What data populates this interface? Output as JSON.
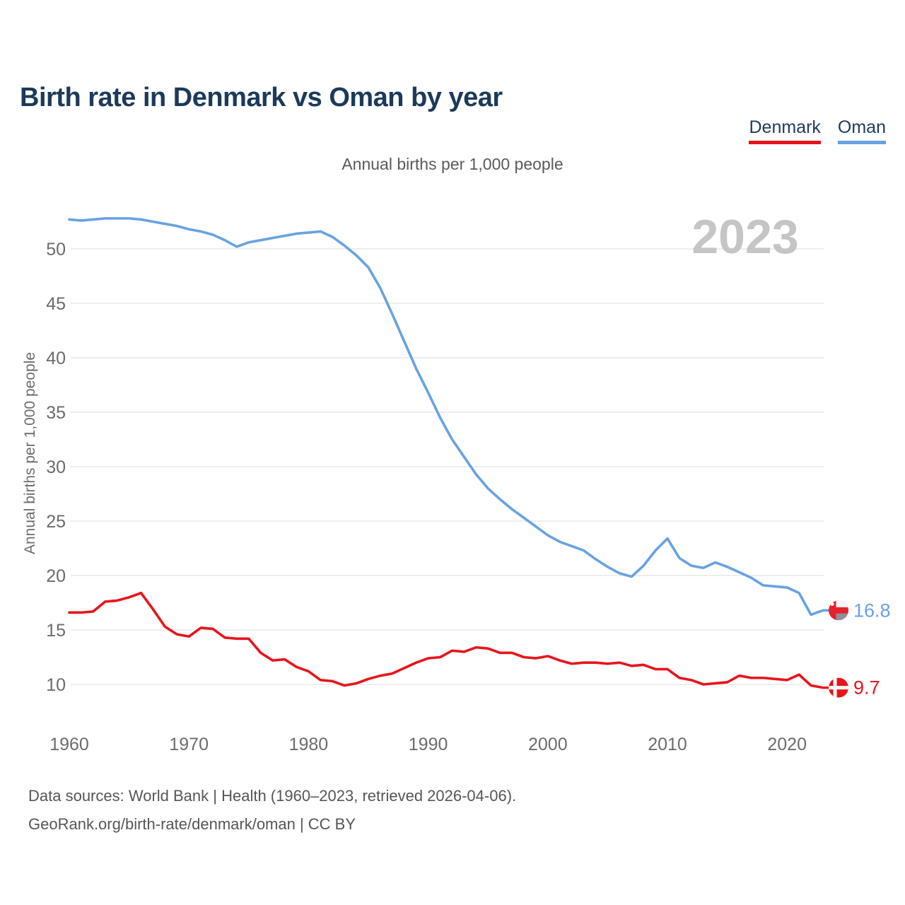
{
  "header": {
    "title": "Birth rate in Denmark vs Oman by year"
  },
  "legend": {
    "denmark": "Denmark",
    "oman": "Oman"
  },
  "footer": {
    "line1": "Data sources: World Bank | Health (1960–2023, retrieved 2026-04-06).",
    "line2": "GeoRank.org/birth-rate/denmark/oman | CC BY"
  },
  "chart_data": {
    "type": "line",
    "subtitle": "Annual births per 1,000 people",
    "ylabel": "Annual births per 1,000 people",
    "xlabel": "",
    "watermark": "2023",
    "grid_color": "#e9e9e9",
    "tick_color": "#6c6c6c",
    "ylim": [
      8.5,
      54
    ],
    "xlim": [
      1960,
      2023
    ],
    "yticks": [
      10,
      15,
      20,
      25,
      30,
      35,
      40,
      45,
      50
    ],
    "xticks": [
      1960,
      1970,
      1980,
      1990,
      2000,
      2010,
      2020
    ],
    "legend_position": "top-right",
    "grid": "horizontal-only",
    "x": [
      1960,
      1961,
      1962,
      1963,
      1964,
      1965,
      1966,
      1967,
      1968,
      1969,
      1970,
      1971,
      1972,
      1973,
      1974,
      1975,
      1976,
      1977,
      1978,
      1979,
      1980,
      1981,
      1982,
      1983,
      1984,
      1985,
      1986,
      1987,
      1988,
      1989,
      1990,
      1991,
      1992,
      1993,
      1994,
      1995,
      1996,
      1997,
      1998,
      1999,
      2000,
      2001,
      2002,
      2003,
      2004,
      2005,
      2006,
      2007,
      2008,
      2009,
      2010,
      2011,
      2012,
      2013,
      2014,
      2015,
      2016,
      2017,
      2018,
      2019,
      2020,
      2021,
      2022,
      2023
    ],
    "series": [
      {
        "name": "Denmark",
        "color": "#e8141c",
        "end_label": "9.7",
        "flag": "denmark",
        "values": [
          16.6,
          16.6,
          16.7,
          17.6,
          17.7,
          18.0,
          18.4,
          16.9,
          15.3,
          14.6,
          14.4,
          15.2,
          15.1,
          14.3,
          14.2,
          14.2,
          12.9,
          12.2,
          12.3,
          11.6,
          11.2,
          10.4,
          10.3,
          9.9,
          10.1,
          10.5,
          10.8,
          11.0,
          11.5,
          12.0,
          12.4,
          12.5,
          13.1,
          13.0,
          13.4,
          13.3,
          12.9,
          12.9,
          12.5,
          12.4,
          12.6,
          12.2,
          11.9,
          12.0,
          12.0,
          11.9,
          12.0,
          11.7,
          11.8,
          11.4,
          11.4,
          10.6,
          10.4,
          10.0,
          10.1,
          10.2,
          10.8,
          10.6,
          10.6,
          10.5,
          10.4,
          10.9,
          9.9,
          9.7
        ]
      },
      {
        "name": "Oman",
        "color": "#68a2e2",
        "end_label": "16.8",
        "flag": "oman",
        "values": [
          52.7,
          52.6,
          52.7,
          52.8,
          52.8,
          52.8,
          52.7,
          52.5,
          52.3,
          52.1,
          51.8,
          51.6,
          51.3,
          50.8,
          50.2,
          50.6,
          50.8,
          51.0,
          51.2,
          51.4,
          51.5,
          51.6,
          51.1,
          50.3,
          49.4,
          48.3,
          46.4,
          44.0,
          41.5,
          39.0,
          36.8,
          34.5,
          32.5,
          30.9,
          29.3,
          28.0,
          27.0,
          26.1,
          25.3,
          24.5,
          23.7,
          23.1,
          22.7,
          22.3,
          21.5,
          20.8,
          20.2,
          19.9,
          20.9,
          22.3,
          23.4,
          21.6,
          20.9,
          20.7,
          21.2,
          20.8,
          20.3,
          19.8,
          19.1,
          19.0,
          18.9,
          18.4,
          16.4,
          16.8
        ]
      }
    ],
    "flag_colors": {
      "denmark_red": "#e8141c",
      "oman_red": "#e8212e",
      "oman_white": "#f5f5f5",
      "oman_green_muted": "#8e9194",
      "cross_white": "#ffffff"
    }
  }
}
